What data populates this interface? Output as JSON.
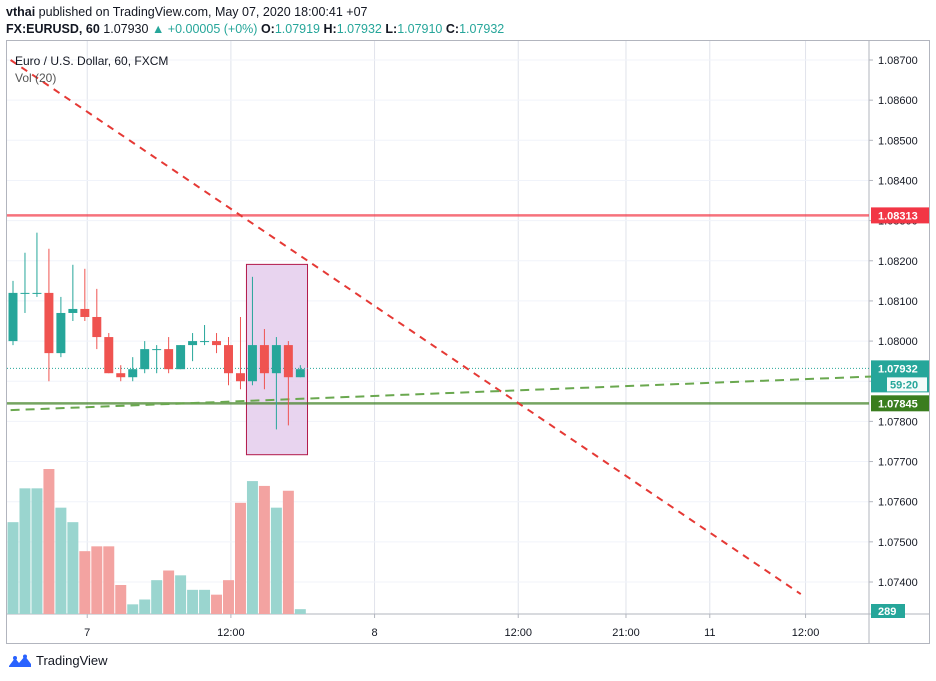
{
  "header": {
    "author": "vthai",
    "published_text": "published on TradingView.com, May 07, 2020 18:00:41 +07",
    "symbol": "FX:EURUSD, 60",
    "last": "1.07930",
    "change": "+0.00005 (+0%)",
    "o_label": "O:",
    "o": "1.07919",
    "h_label": "H:",
    "h": "1.07932",
    "l_label": "L:",
    "l": "1.07910",
    "c_label": "C:",
    "c": "1.07932"
  },
  "legend": {
    "title": "Euro / U.S. Dollar, 60, FXCM",
    "volume": "Vol (20)"
  },
  "footer": {
    "brand": "TradingView"
  },
  "chart_data": {
    "type": "candlestick",
    "price_axis": {
      "min": 1.0734,
      "max": 1.0874,
      "ticks": [
        "1.08700",
        "1.08600",
        "1.08500",
        "1.08400",
        "1.08300",
        "1.08200",
        "1.08100",
        "1.08000",
        "1.07900",
        "1.07800",
        "1.07700",
        "1.07600",
        "1.07500",
        "1.07400"
      ]
    },
    "time_axis": {
      "ticks": [
        {
          "label": "7",
          "bar": 6.2
        },
        {
          "label": "12:00",
          "bar": 18.2
        },
        {
          "label": "8",
          "bar": 30.2
        },
        {
          "label": "12:00",
          "bar": 42.2
        },
        {
          "label": "21:00",
          "bar": 51.2
        },
        {
          "label": "11",
          "bar": 58.2
        },
        {
          "label": "12:00",
          "bar": 66.2
        }
      ],
      "total_bars": 72.0
    },
    "candles": [
      {
        "o": 1.08,
        "h": 1.0815,
        "l": 1.0799,
        "c": 1.0812,
        "v": 38
      },
      {
        "o": 1.0812,
        "h": 1.0822,
        "l": 1.0807,
        "c": 1.0812,
        "v": 52
      },
      {
        "o": 1.0812,
        "h": 1.0827,
        "l": 1.0811,
        "c": 1.0812,
        "v": 52
      },
      {
        "o": 1.0812,
        "h": 1.0823,
        "l": 1.079,
        "c": 1.0797,
        "v": 60
      },
      {
        "o": 1.0797,
        "h": 1.0811,
        "l": 1.0796,
        "c": 1.0807,
        "v": 44
      },
      {
        "o": 1.0807,
        "h": 1.0819,
        "l": 1.0805,
        "c": 1.0808,
        "v": 38
      },
      {
        "o": 1.0808,
        "h": 1.0818,
        "l": 1.0805,
        "c": 1.0806,
        "v": 26
      },
      {
        "o": 1.0806,
        "h": 1.0813,
        "l": 1.0798,
        "c": 1.0801,
        "v": 28
      },
      {
        "o": 1.0801,
        "h": 1.0802,
        "l": 1.0792,
        "c": 1.0792,
        "v": 28
      },
      {
        "o": 1.0792,
        "h": 1.0794,
        "l": 1.079,
        "c": 1.0791,
        "v": 12
      },
      {
        "o": 1.0791,
        "h": 1.0796,
        "l": 1.079,
        "c": 1.0793,
        "v": 4
      },
      {
        "o": 1.0793,
        "h": 1.08,
        "l": 1.0792,
        "c": 1.0798,
        "v": 6
      },
      {
        "o": 1.0798,
        "h": 1.0799,
        "l": 1.0792,
        "c": 1.0798,
        "v": 14
      },
      {
        "o": 1.0798,
        "h": 1.0801,
        "l": 1.0792,
        "c": 1.0793,
        "v": 18
      },
      {
        "o": 1.0793,
        "h": 1.0799,
        "l": 1.0793,
        "c": 1.0799,
        "v": 16
      },
      {
        "o": 1.0799,
        "h": 1.0802,
        "l": 1.0795,
        "c": 1.08,
        "v": 10
      },
      {
        "o": 1.08,
        "h": 1.0804,
        "l": 1.0799,
        "c": 1.08,
        "v": 10
      },
      {
        "o": 1.08,
        "h": 1.0802,
        "l": 1.0797,
        "c": 1.0799,
        "v": 8
      },
      {
        "o": 1.0799,
        "h": 1.0801,
        "l": 1.0789,
        "c": 1.0792,
        "v": 14
      },
      {
        "o": 1.0792,
        "h": 1.0806,
        "l": 1.0788,
        "c": 1.079,
        "v": 46
      },
      {
        "o": 1.079,
        "h": 1.0816,
        "l": 1.0789,
        "c": 1.0799,
        "v": 55
      },
      {
        "o": 1.0799,
        "h": 1.0803,
        "l": 1.0788,
        "c": 1.0792,
        "v": 53
      },
      {
        "o": 1.0792,
        "h": 1.0801,
        "l": 1.0778,
        "c": 1.0799,
        "v": 44
      },
      {
        "o": 1.0799,
        "h": 1.08,
        "l": 1.0779,
        "c": 1.0791,
        "v": 51
      },
      {
        "o": 1.0791,
        "h": 1.0794,
        "l": 1.0791,
        "c": 1.0793,
        "v": 2
      }
    ],
    "volume_max": 60,
    "horizontal_lines": [
      {
        "price": 1.08313,
        "label": "1.08313",
        "color": "#f23645"
      },
      {
        "price": 1.07845,
        "label": "1.07845",
        "color": "#3a7d1e"
      }
    ],
    "last_price": {
      "price": 1.07932,
      "label": "1.07932",
      "countdown": "59:20",
      "color": "#26a69a"
    },
    "volume_label": {
      "label": "289",
      "color": "#26a69a"
    },
    "trendlines": [
      {
        "name": "red-downtrend",
        "color": "#e53935",
        "p1": {
          "bar": -0.2,
          "price": 1.087
        },
        "p2": {
          "bar": 65.8,
          "price": 1.0737
        }
      },
      {
        "name": "green-uptrend",
        "color": "#6aa84f",
        "p1": {
          "bar": -0.2,
          "price": 1.07828
        },
        "p2": {
          "bar": 72.0,
          "price": 1.07912
        }
      }
    ],
    "highlight_box": {
      "from_bar": 19.5,
      "to_bar": 24.6,
      "top": 1.08191,
      "bottom": 1.07717
    }
  },
  "colors": {
    "up": "#26a69a",
    "down": "#ef5350",
    "up_vol": "#9ad5cf",
    "down_vol": "#f3a3a1",
    "grid": "#e0e3eb",
    "axis_text": "#131722",
    "highlight_fill": "#e4cdec",
    "highlight_stroke": "#b2194a"
  }
}
